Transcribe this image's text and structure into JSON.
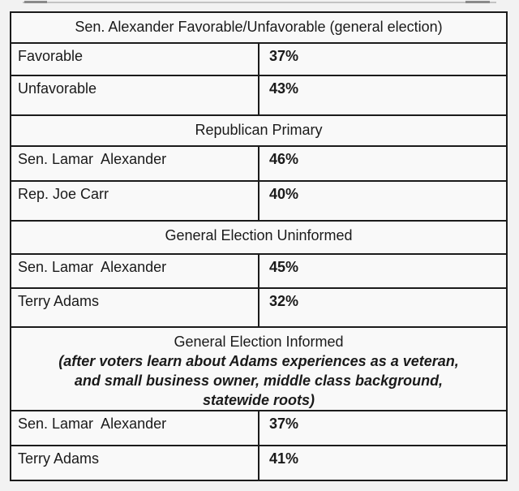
{
  "colors": {
    "page_background": "#f2f2f2",
    "cell_background": "#f9f9f9",
    "border": "#1b1b1b",
    "text": "#1a1a1a"
  },
  "table": {
    "sections": [
      {
        "header": "Sen. Alexander Favorable/Unfavorable (general election)",
        "rows": [
          {
            "label": "Favorable",
            "value": "37%"
          },
          {
            "label": "Unfavorable",
            "value": "43%"
          }
        ]
      },
      {
        "header": "Republican Primary",
        "rows": [
          {
            "label": "Sen. Lamar  Alexander",
            "value": "46%"
          },
          {
            "label": "Rep. Joe Carr",
            "value": "40%"
          }
        ]
      },
      {
        "header": "General Election Uninformed",
        "rows": [
          {
            "label": "Sen. Lamar  Alexander",
            "value": "45%"
          },
          {
            "label": "Terry Adams",
            "value": "32%"
          }
        ]
      },
      {
        "header": "General Election Informed",
        "note_lines": [
          "(after voters learn about Adams experiences as a veteran,",
          "and small business owner, middle class background,",
          "statewide roots)"
        ],
        "rows": [
          {
            "label": "Sen. Lamar  Alexander",
            "value": "37%"
          },
          {
            "label": "Terry Adams",
            "value": "41%"
          }
        ]
      }
    ]
  }
}
